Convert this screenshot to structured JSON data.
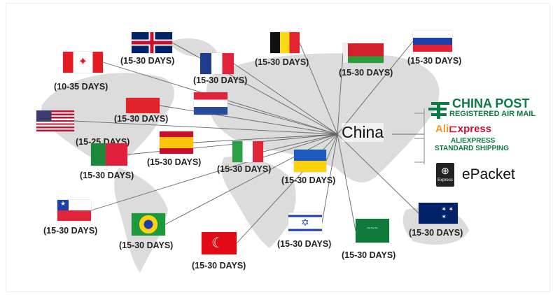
{
  "hub": "China",
  "countries": [
    {
      "id": "uk",
      "label": "(15-30 DAYS)"
    },
    {
      "id": "canada",
      "label": "(10-35 DAYS)"
    },
    {
      "id": "france",
      "label": "(15-30 DAYS)"
    },
    {
      "id": "belgium",
      "label": "(15-30 DAYS)"
    },
    {
      "id": "belarus",
      "label": "(15-30 DAYS)"
    },
    {
      "id": "russia",
      "label": "(15-30 DAYS)"
    },
    {
      "id": "poland",
      "label": "(15-30 DAYS)"
    },
    {
      "id": "netherlands",
      "label": ""
    },
    {
      "id": "usa",
      "label": "(15-25 DAYS)"
    },
    {
      "id": "spain",
      "label": "(15-30 DAYS)"
    },
    {
      "id": "portugal",
      "label": "(15-30 DAYS)"
    },
    {
      "id": "italy",
      "label": "(15-30 DAYS)"
    },
    {
      "id": "ukraine",
      "label": "(15-30 DAYS)"
    },
    {
      "id": "chile",
      "label": "(15-30 DAYS)"
    },
    {
      "id": "brazil",
      "label": "(15-30 DAYS)"
    },
    {
      "id": "turkey",
      "label": "(15-30 DAYS)"
    },
    {
      "id": "israel",
      "label": "(15-30 DAYS)"
    },
    {
      "id": "saudi-arabia",
      "label": "(15-30 DAYS)"
    },
    {
      "id": "australia",
      "label": "(15-30 DAYS)"
    }
  ],
  "carriers": {
    "china_post": {
      "title": "CHINA POST",
      "subtitle": "REGISTERED AIR MAIL"
    },
    "aliexpress": {
      "logo_a": "Ali",
      "logo_b": "xpress",
      "line1": "ALIEXPRESS",
      "line2": "STANDARD SHIPPING"
    },
    "epacket": {
      "title": "ePacket",
      "logo_text": "Express"
    }
  },
  "colors": {
    "map": "#dcdcdc",
    "china_post_green": "#0b7a45",
    "ali_orange": "#f29a1f",
    "ali_red": "#c8102e"
  }
}
